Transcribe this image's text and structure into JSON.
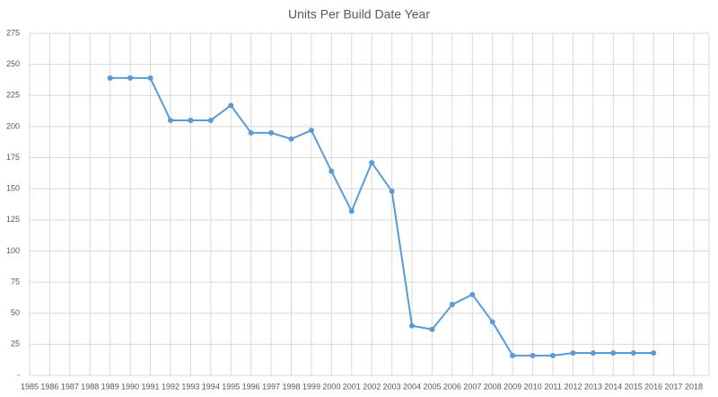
{
  "chart_data": {
    "type": "line",
    "title": "Units Per Build Date Year",
    "x": [
      1989,
      1990,
      1991,
      1992,
      1993,
      1994,
      1995,
      1996,
      1997,
      1998,
      1999,
      2000,
      2001,
      2002,
      2003,
      2004,
      2005,
      2006,
      2007,
      2008,
      2009,
      2010,
      2011,
      2012,
      2013,
      2014,
      2015,
      2016
    ],
    "values": [
      239,
      239,
      239,
      205,
      205,
      205,
      217,
      195,
      195,
      190,
      197,
      164,
      132,
      171,
      148,
      40,
      37,
      57,
      65,
      43,
      16,
      16,
      16,
      18,
      18,
      18,
      18,
      18
    ],
    "color": "#5b9bd5",
    "xlim": [
      1985,
      2018
    ],
    "xticks": [
      1985,
      1986,
      1987,
      1988,
      1989,
      1990,
      1991,
      1992,
      1993,
      1994,
      1995,
      1996,
      1997,
      1998,
      1999,
      2000,
      2001,
      2002,
      2003,
      2004,
      2005,
      2006,
      2007,
      2008,
      2009,
      2010,
      2011,
      2012,
      2013,
      2014,
      2015,
      2016,
      2017,
      2018
    ],
    "ylim": [
      0,
      275
    ],
    "yticks": [
      {
        "value": 0,
        "label": "-"
      },
      25,
      50,
      75,
      100,
      125,
      150,
      175,
      200,
      225,
      250,
      275
    ],
    "grid": true
  }
}
